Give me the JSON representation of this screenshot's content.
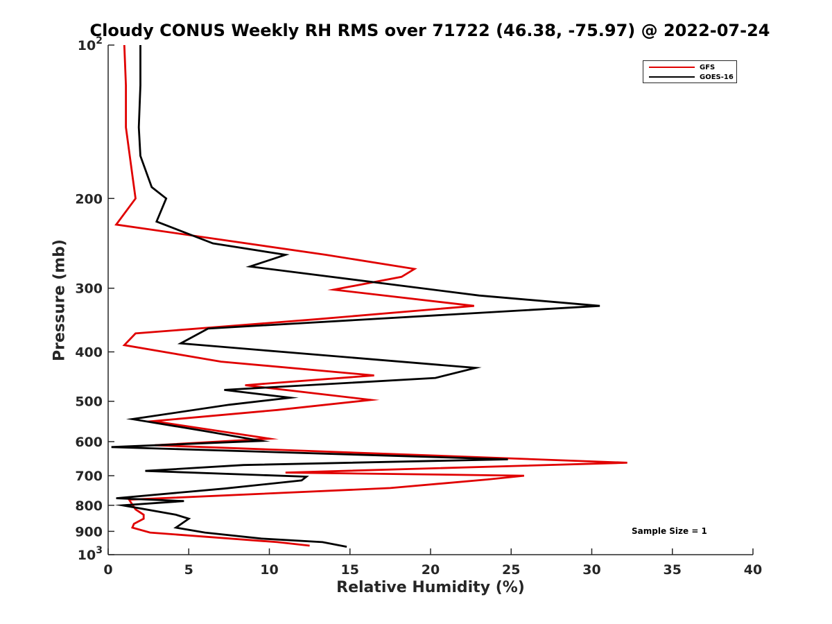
{
  "chart_data": {
    "type": "line",
    "title": "Cloudy CONUS Weekly RH RMS over 71722 (46.38, -75.97) @ 2022-07-24",
    "xlabel": "Relative Humidity (%)",
    "ylabel": "Pressure (mb)",
    "xlim": [
      0,
      40
    ],
    "ylim": [
      100,
      1000
    ],
    "yscale": "log",
    "y_reversed": true,
    "x_ticks": [
      0,
      5,
      10,
      15,
      20,
      25,
      30,
      35,
      40
    ],
    "x_tick_labels": [
      "0",
      "5",
      "10",
      "15",
      "20",
      "25",
      "30",
      "35",
      "40"
    ],
    "y_ticks": [
      100,
      200,
      300,
      400,
      500,
      600,
      700,
      800,
      900,
      1000
    ],
    "y_tick_labels": [
      {
        "base": "10",
        "exp": "2"
      },
      {
        "base": "200",
        "exp": ""
      },
      {
        "base": "300",
        "exp": ""
      },
      {
        "base": "400",
        "exp": ""
      },
      {
        "base": "500",
        "exp": ""
      },
      {
        "base": "600",
        "exp": ""
      },
      {
        "base": "700",
        "exp": ""
      },
      {
        "base": "800",
        "exp": ""
      },
      {
        "base": "900",
        "exp": ""
      },
      {
        "base": "10",
        "exp": "3"
      }
    ],
    "legend_position": "top-right",
    "annotation": "Sample Size = 1",
    "series": [
      {
        "name": "GFS",
        "color": "#e00000",
        "x": [
          1.0,
          1.1,
          1.1,
          1.5,
          1.7,
          0.5,
          13.5,
          19.0,
          18.2,
          14.0,
          22.7,
          13.0,
          1.7,
          1.0,
          7.0,
          16.5,
          8.5,
          16.3,
          10.5,
          2.8,
          10.0,
          2.9,
          32.2,
          11.0,
          25.8,
          23.5,
          17.5,
          1.3,
          1.7,
          2.2,
          2.2,
          1.6,
          1.5,
          2.6,
          10.5,
          12.5
        ],
        "y": [
          100,
          120,
          145,
          180,
          200,
          225,
          258,
          275,
          285,
          302,
          325,
          345,
          368,
          388,
          418,
          445,
          465,
          497,
          520,
          547,
          592,
          610,
          660,
          690,
          700,
          712,
          740,
          780,
          815,
          835,
          850,
          870,
          885,
          905,
          945,
          960
        ]
      },
      {
        "name": "GOES-16",
        "color": "#000000",
        "x": [
          2.0,
          2.0,
          1.9,
          2.0,
          2.7,
          3.6,
          3.0,
          6.5,
          11.0,
          8.8,
          23.0,
          30.5,
          6.2,
          4.5,
          22.8,
          20.3,
          7.2,
          11.3,
          7.5,
          1.5,
          6.0,
          9.5,
          0.2,
          24.8,
          8.4,
          2.3,
          12.3,
          12.0,
          7.2,
          0.5,
          4.7,
          0.9,
          4.2,
          5.0,
          4.2,
          6.0,
          9.5,
          13.3,
          14.8
        ],
        "y": [
          100,
          120,
          145,
          165,
          190,
          200,
          222,
          245,
          258,
          272,
          310,
          325,
          360,
          385,
          430,
          450,
          475,
          492,
          508,
          542,
          572,
          598,
          615,
          650,
          667,
          685,
          703,
          715,
          742,
          775,
          785,
          800,
          835,
          850,
          885,
          905,
          930,
          945,
          965
        ]
      }
    ]
  }
}
